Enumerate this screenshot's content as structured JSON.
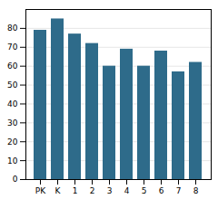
{
  "chart_data": {
    "type": "bar",
    "categories": [
      "PK",
      "K",
      "1",
      "2",
      "3",
      "4",
      "5",
      "6",
      "7",
      "8"
    ],
    "values": [
      79,
      85,
      77,
      72,
      60,
      69,
      60,
      68,
      57,
      62
    ],
    "color": "#2e6b8a",
    "ylim": [
      0,
      90
    ],
    "yticks": [
      0,
      10,
      20,
      30,
      40,
      50,
      60,
      70,
      80
    ],
    "grid": true
  }
}
